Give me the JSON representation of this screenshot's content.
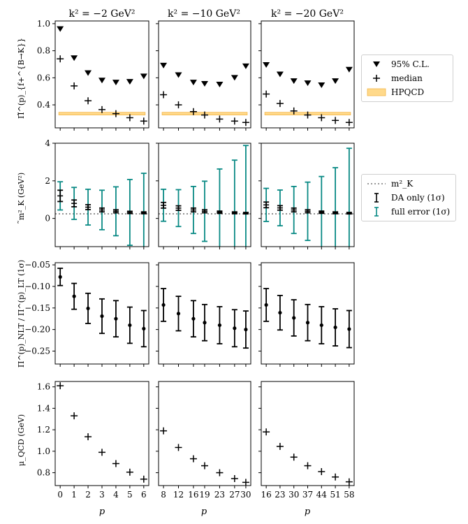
{
  "figure": {
    "column_titles": [
      "k² = −2 GeV²",
      "k² = −10 GeV²",
      "k² = −20 GeV²"
    ],
    "xlabel": "p",
    "legend_top": {
      "items": [
        "95% C.L.",
        "median",
        "HPQCD"
      ]
    },
    "legend_mid": {
      "items": [
        "m²_K",
        "DA only (1σ)",
        "full error (1σ)"
      ]
    },
    "colors": {
      "hpqcd_fill": "#ffd98a",
      "hpqcd_edge": "#f3b64a",
      "teal": "#0a8a85",
      "black": "#000000",
      "dotted": "#777777"
    }
  },
  "chart_data": [
    {
      "type": "scatter",
      "row": 0,
      "ylabel": "Π̃^(p)_{f+^{B→K}}",
      "ylim": [
        0.23,
        1.02
      ],
      "yticks": [
        0.4,
        0.6,
        0.8,
        1.0
      ],
      "ytick_labels": [
        "0.4",
        "0.6",
        "0.8",
        "1.0"
      ],
      "hpqcd_band": [
        0.325,
        0.345
      ],
      "columns": [
        {
          "x": [
            0,
            1,
            2,
            3,
            4,
            5,
            6
          ],
          "cl95": [
            0.96,
            0.745,
            0.635,
            0.58,
            0.565,
            0.57,
            0.61
          ],
          "median": [
            0.74,
            0.54,
            0.43,
            0.365,
            0.335,
            0.305,
            0.28
          ]
        },
        {
          "x": [
            8,
            12,
            16,
            19,
            23,
            27,
            30
          ],
          "cl95": [
            0.69,
            0.62,
            0.565,
            0.555,
            0.55,
            0.6,
            0.685
          ],
          "median": [
            0.475,
            0.4,
            0.35,
            0.325,
            0.295,
            0.28,
            0.27
          ]
        },
        {
          "x": [
            16,
            23,
            30,
            37,
            44,
            51,
            58
          ],
          "cl95": [
            0.695,
            0.625,
            0.575,
            0.56,
            0.545,
            0.575,
            0.66
          ],
          "median": [
            0.48,
            0.41,
            0.355,
            0.325,
            0.305,
            0.285,
            0.27
          ]
        }
      ]
    },
    {
      "type": "errorbar",
      "row": 1,
      "ylabel": "̃m²_K (GeV²)",
      "ylim": [
        -1.5,
        4.0
      ],
      "yticks": [
        0,
        2,
        4
      ],
      "ytick_labels": [
        "0",
        "2",
        "4"
      ],
      "mk2": 0.245,
      "columns": [
        {
          "x": [
            0,
            1,
            2,
            3,
            4,
            5,
            6
          ],
          "central": [
            1.2,
            0.8,
            0.6,
            0.45,
            0.38,
            0.32,
            0.3
          ],
          "da_err": [
            0.3,
            0.18,
            0.13,
            0.1,
            0.08,
            0.06,
            0.05
          ],
          "full_err": [
            0.75,
            0.85,
            0.95,
            1.05,
            1.3,
            1.75,
            2.1
          ]
        },
        {
          "x": [
            8,
            12,
            16,
            19,
            23,
            27,
            30
          ],
          "central": [
            0.7,
            0.55,
            0.45,
            0.38,
            0.33,
            0.3,
            0.28
          ],
          "da_err": [
            0.15,
            0.12,
            0.1,
            0.08,
            0.06,
            0.05,
            0.04
          ],
          "full_err": [
            0.85,
            0.98,
            1.25,
            1.6,
            2.3,
            2.8,
            3.6
          ]
        },
        {
          "x": [
            16,
            23,
            30,
            37,
            44,
            51,
            58
          ],
          "central": [
            0.72,
            0.56,
            0.45,
            0.38,
            0.33,
            0.3,
            0.28
          ],
          "da_err": [
            0.15,
            0.12,
            0.1,
            0.08,
            0.06,
            0.05,
            0.04
          ],
          "full_err": [
            0.88,
            0.95,
            1.25,
            1.55,
            1.9,
            2.4,
            3.45
          ]
        }
      ]
    },
    {
      "type": "errorbar",
      "row": 2,
      "ylabel": "Π^(p)_NLT / Π^(p)_LT (1σ)",
      "ylim": [
        -0.28,
        -0.045
      ],
      "yticks": [
        -0.25,
        -0.2,
        -0.15,
        -0.1,
        -0.05
      ],
      "ytick_labels": [
        "−0.25",
        "−0.20",
        "−0.15",
        "−0.10",
        "−0.05"
      ],
      "columns": [
        {
          "x": [
            0,
            1,
            2,
            3,
            4,
            5,
            6
          ],
          "central": [
            -0.078,
            -0.123,
            -0.151,
            -0.169,
            -0.175,
            -0.19,
            -0.198
          ],
          "err": [
            0.02,
            0.03,
            0.035,
            0.04,
            0.042,
            0.042,
            0.042
          ]
        },
        {
          "x": [
            8,
            12,
            16,
            19,
            23,
            27,
            30
          ],
          "central": [
            -0.143,
            -0.163,
            -0.175,
            -0.184,
            -0.19,
            -0.197,
            -0.2
          ],
          "err": [
            0.038,
            0.04,
            0.042,
            0.042,
            0.043,
            0.043,
            0.043
          ]
        },
        {
          "x": [
            16,
            23,
            30,
            37,
            44,
            51,
            58
          ],
          "central": [
            -0.143,
            -0.161,
            -0.173,
            -0.184,
            -0.19,
            -0.195,
            -0.199
          ],
          "err": [
            0.038,
            0.04,
            0.042,
            0.042,
            0.043,
            0.043,
            0.043
          ]
        }
      ]
    },
    {
      "type": "scatter",
      "row": 3,
      "ylabel": "μ_QCD (GeV)",
      "ylim": [
        0.68,
        1.65
      ],
      "yticks": [
        0.8,
        1.0,
        1.2,
        1.4,
        1.6
      ],
      "ytick_labels": [
        "0.8",
        "1.0",
        "1.2",
        "1.4",
        "1.6"
      ],
      "columns": [
        {
          "x": [
            0,
            1,
            2,
            3,
            4,
            5,
            6
          ],
          "values": [
            1.61,
            1.33,
            1.135,
            0.99,
            0.885,
            0.805,
            0.74
          ]
        },
        {
          "x": [
            8,
            12,
            16,
            19,
            23,
            27,
            30
          ],
          "values": [
            1.19,
            1.035,
            0.93,
            0.865,
            0.8,
            0.745,
            0.71
          ]
        },
        {
          "x": [
            16,
            23,
            30,
            37,
            44,
            51,
            58
          ],
          "values": [
            1.18,
            1.045,
            0.945,
            0.865,
            0.81,
            0.76,
            0.715
          ]
        }
      ]
    }
  ],
  "xtick_labels": [
    [
      "0",
      "1",
      "2",
      "3",
      "4",
      "5",
      "6"
    ],
    [
      "8",
      "12",
      "16",
      "19",
      "23",
      "27",
      "30"
    ],
    [
      "16",
      "23",
      "30",
      "37",
      "44",
      "51",
      "58"
    ]
  ]
}
